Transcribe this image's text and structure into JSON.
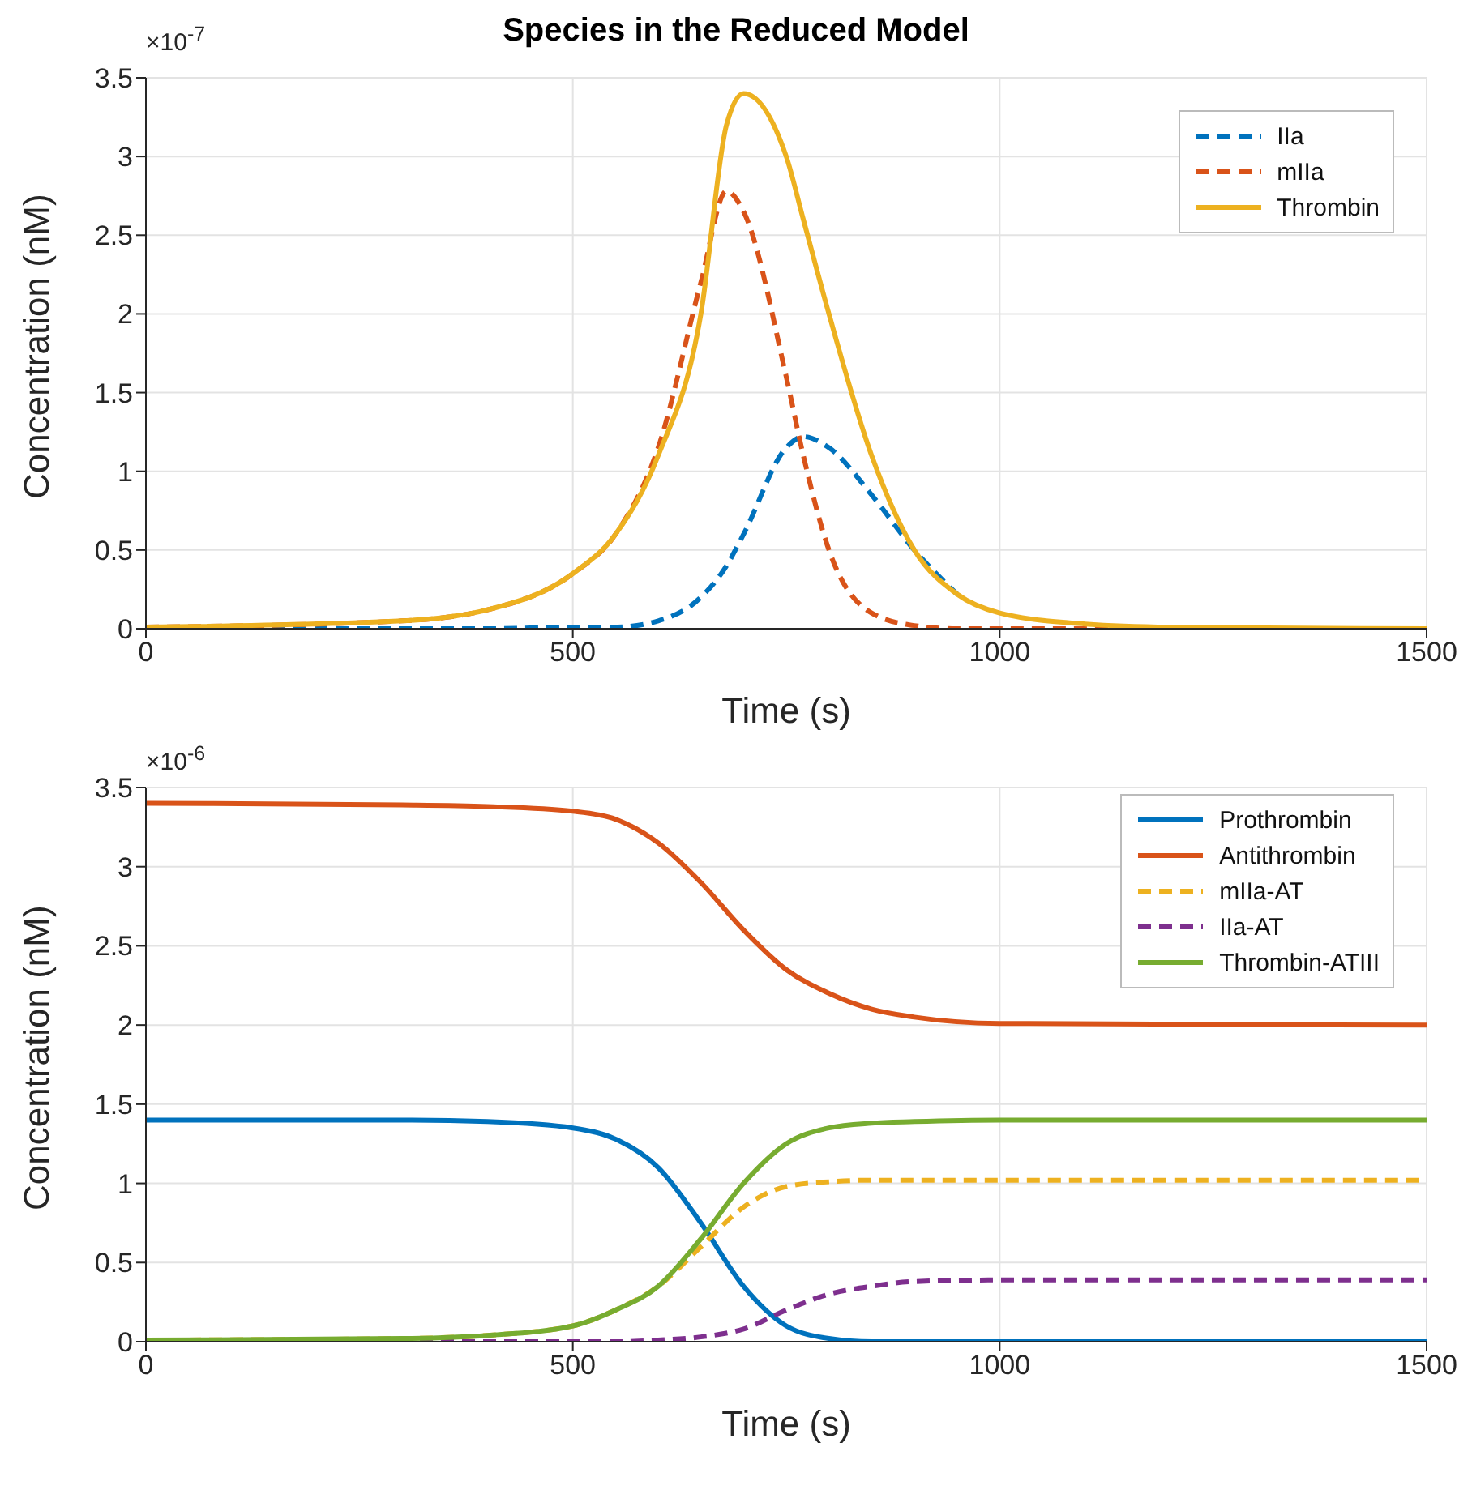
{
  "chart_data": [
    {
      "type": "line",
      "title": "Species in the Reduced Model",
      "xlabel": "Time (s)",
      "ylabel": "Concentration (nM)",
      "annotations": [
        "×10$^{-7}$"
      ],
      "x": [
        0,
        300,
        400,
        500,
        550,
        600,
        650,
        680,
        700,
        750,
        770,
        800,
        850,
        900,
        950,
        1000,
        1100,
        1200,
        1500
      ],
      "series": [
        {
          "name": "IIa",
          "color": "#0072bd",
          "line_style": "dashed",
          "values": [
            0,
            0,
            0,
            0.01,
            0.01,
            0.05,
            0.2,
            0.4,
            0.6,
            1.15,
            1.22,
            1.15,
            0.85,
            0.5,
            0.22,
            null,
            null,
            null,
            null
          ]
        },
        {
          "name": "mIIa",
          "color": "#d95319",
          "line_style": "dashed",
          "values": [
            0.01,
            0.05,
            0.12,
            0.35,
            0.6,
            1.15,
            2.2,
            2.78,
            2.65,
            1.6,
            1.1,
            0.5,
            0.1,
            0.02,
            0,
            0,
            0,
            0,
            0
          ]
        },
        {
          "name": "Thrombin",
          "color": "#edb120",
          "line_style": "solid",
          "values": [
            0.01,
            0.05,
            0.12,
            0.35,
            0.6,
            1.1,
            2.0,
            3.2,
            3.4,
            3.0,
            2.6,
            2.0,
            1.1,
            0.5,
            0.22,
            0.1,
            0.03,
            0.01,
            0
          ]
        }
      ],
      "xlim": [
        0,
        1500
      ],
      "xticks": [
        0,
        500,
        1000,
        1500
      ],
      "ylim": [
        0,
        3.5
      ],
      "yticks": [
        0,
        0.5,
        1,
        1.5,
        2,
        2.5,
        3,
        3.5
      ],
      "grid": true,
      "legend": "top right",
      "marker": "none"
    },
    {
      "type": "line",
      "xlabel": "Time (s)",
      "ylabel": "Concentration (nM)",
      "annotations": [
        "×10$^{-6}$"
      ],
      "x": [
        0,
        300,
        400,
        500,
        550,
        600,
        650,
        700,
        750,
        800,
        850,
        900,
        1000,
        1500
      ],
      "series": [
        {
          "name": "Prothrombin",
          "color": "#0072bd",
          "line_style": "solid",
          "values": [
            1.4,
            1.4,
            1.39,
            1.35,
            1.28,
            1.1,
            0.75,
            0.35,
            0.1,
            0.02,
            0,
            0,
            0,
            0
          ]
        },
        {
          "name": "Antithrombin",
          "color": "#d95319",
          "line_style": "solid",
          "values": [
            3.4,
            3.39,
            3.38,
            3.35,
            3.3,
            3.15,
            2.9,
            2.6,
            2.35,
            2.2,
            2.1,
            2.05,
            2.01,
            2.0
          ]
        },
        {
          "name": "mIIa-AT",
          "color": "#edb120",
          "line_style": "dashed",
          "values": [
            0.01,
            0.02,
            0.04,
            0.1,
            0.2,
            0.35,
            0.6,
            0.85,
            0.98,
            1.01,
            1.02,
            1.02,
            1.02,
            1.02
          ]
        },
        {
          "name": "IIa-AT",
          "color": "#7e2f8e",
          "line_style": "dashed",
          "values": [
            0,
            0,
            0,
            0,
            0,
            0.01,
            0.03,
            0.08,
            0.2,
            0.3,
            0.35,
            0.38,
            0.39,
            0.39
          ]
        },
        {
          "name": "Thrombin-ATIII",
          "color": "#77ac30",
          "line_style": "solid",
          "values": [
            0.01,
            0.02,
            0.04,
            0.1,
            0.2,
            0.35,
            0.65,
            1.0,
            1.25,
            1.35,
            1.38,
            1.39,
            1.4,
            1.4
          ]
        }
      ],
      "xlim": [
        0,
        1500
      ],
      "xticks": [
        0,
        500,
        1000,
        1500
      ],
      "ylim": [
        0,
        3.5
      ],
      "yticks": [
        0,
        0.5,
        1,
        1.5,
        2,
        2.5,
        3,
        3.5
      ],
      "grid": true,
      "legend": "top right",
      "marker": "none"
    }
  ]
}
